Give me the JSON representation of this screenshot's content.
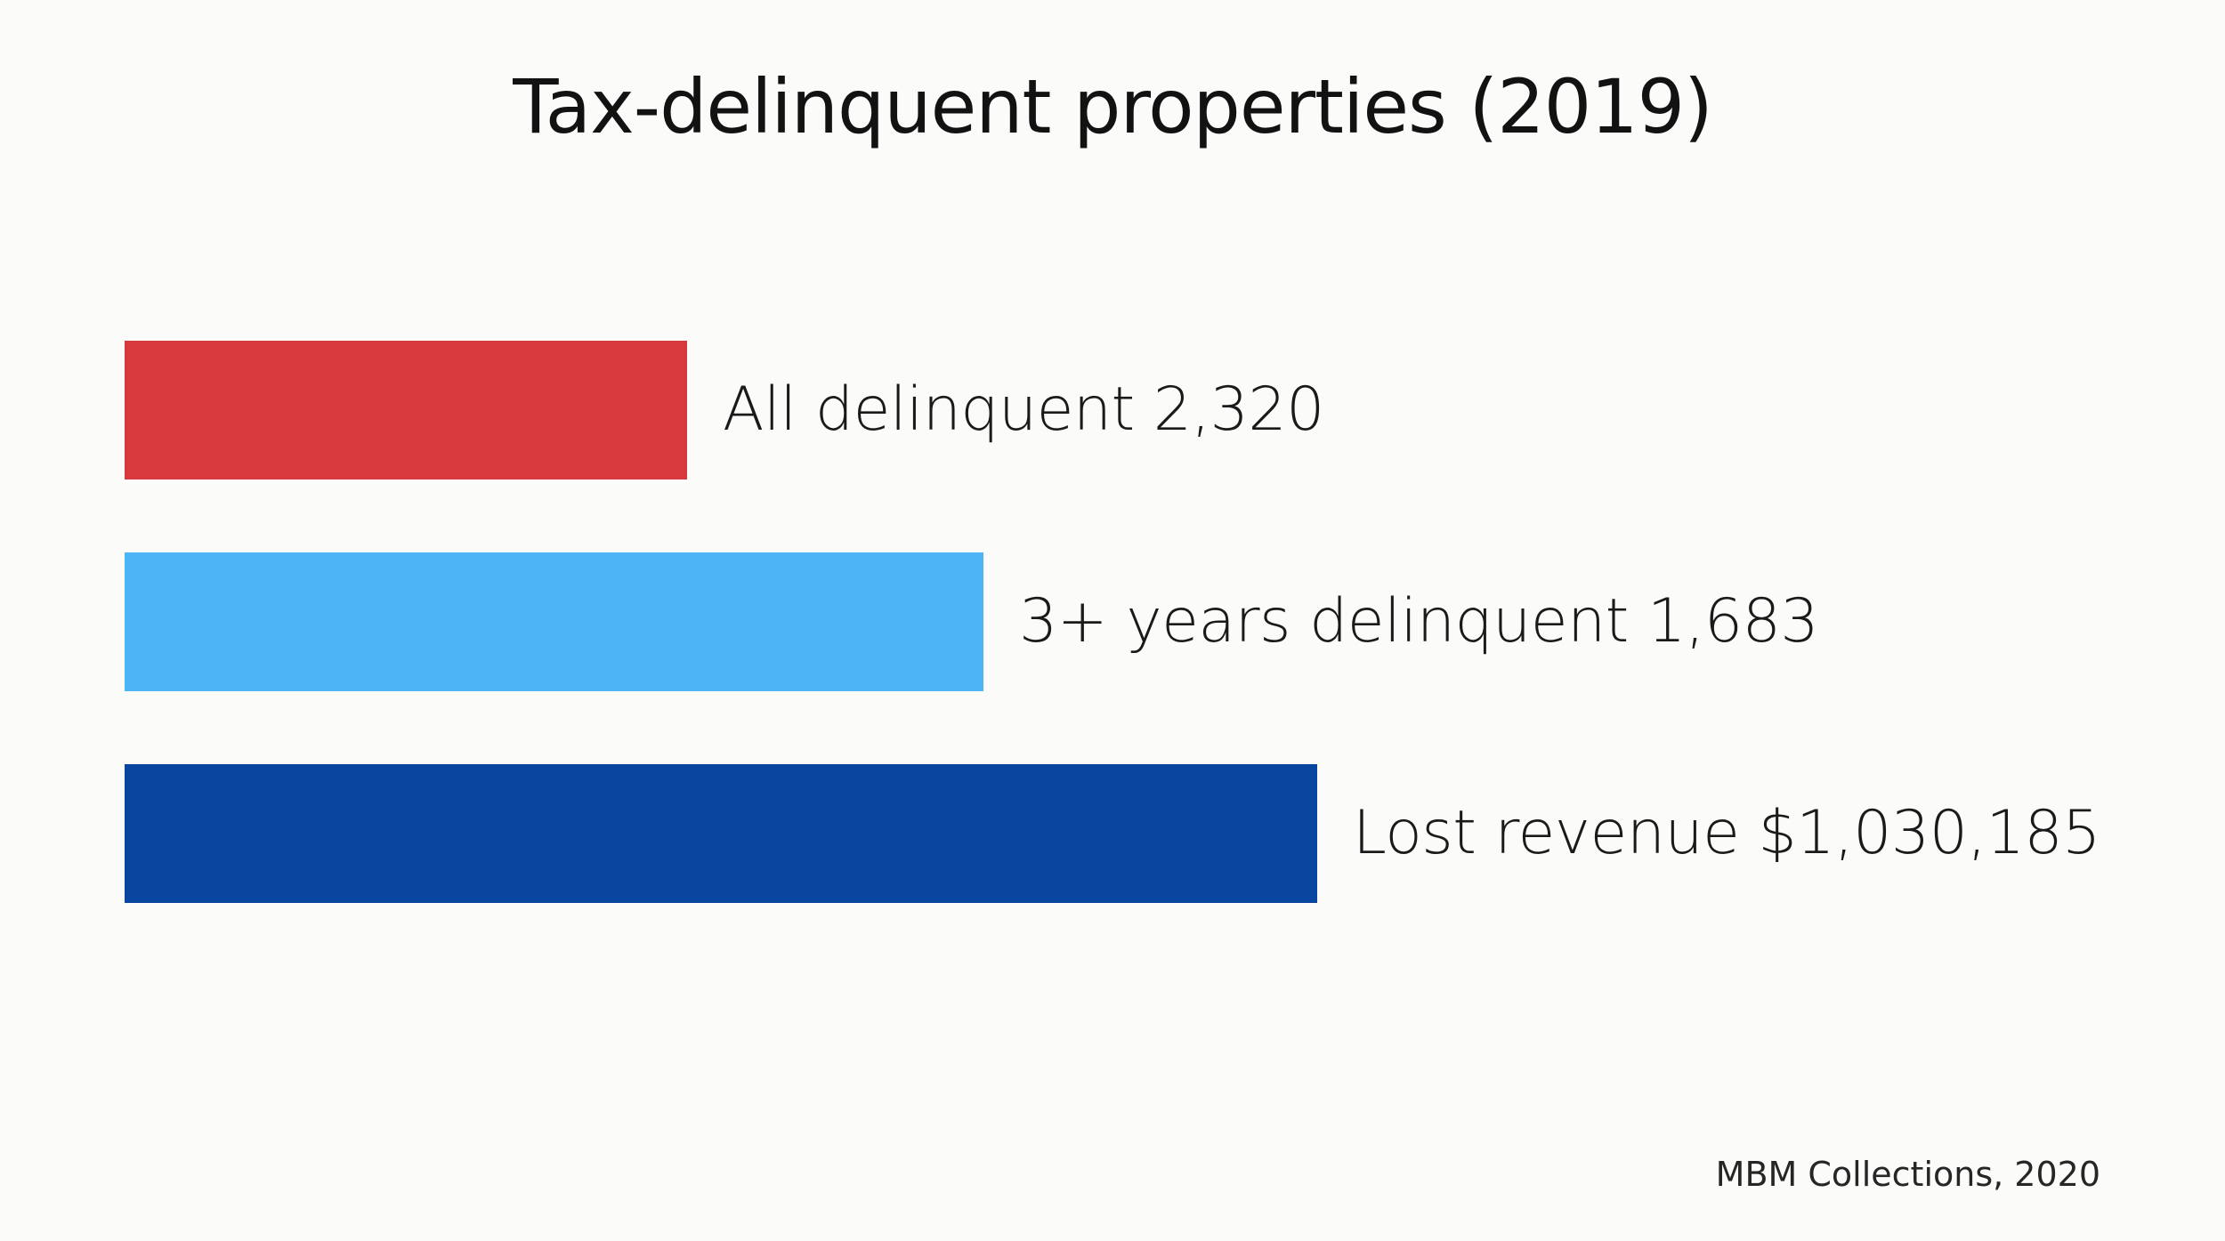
{
  "chart_data": {
    "type": "bar",
    "orientation": "horizontal",
    "title": "Tax-delinquent properties (2019)",
    "bars": [
      {
        "label": "All delinquent 2,320",
        "value": 2320,
        "color": "#d8393d"
      },
      {
        "label": "3+ years delinquent 1,683",
        "value": 1683,
        "color": "#4cb5f5"
      },
      {
        "label": "Lost revenue $1,030,185",
        "value": 1030185,
        "color": "#0846a0"
      }
    ],
    "source": "MBM Collections, 2020",
    "grid": false,
    "legend": "none"
  }
}
